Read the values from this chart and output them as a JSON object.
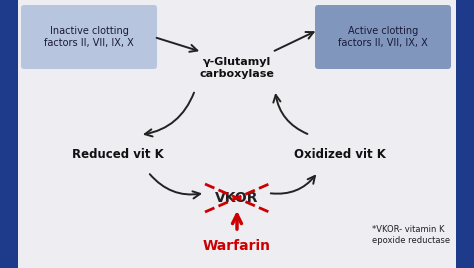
{
  "bg_color": "#ededf2",
  "border_color": "#1e3a8a",
  "inactive_box_color": "#b8c5de",
  "active_box_color": "#8096bc",
  "inactive_text": "Inactive clotting\nfactors II, VII, IX, X",
  "active_text": "Active clotting\nfactors II, VII, IX, X",
  "gamma_text": "γ-Glutamyl\ncarboxylase",
  "reduced_text": "Reduced vit K",
  "oxidized_text": "Oxidized vit K",
  "vkor_text": "VKOR",
  "warfarin_text": "Warfarin",
  "footnote_text": "*VKOR- vitamin K\nepoxide reductase",
  "arrow_color": "#222222",
  "red_color": "#cc0000"
}
